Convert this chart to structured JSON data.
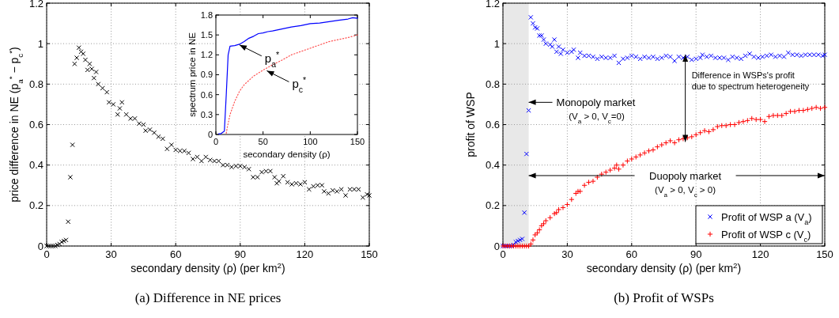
{
  "chart_data": [
    {
      "type": "scatter",
      "xlabel": "secondary density (ρ) (per km$^{2}$)",
      "ylabel": "price difference in NE (p$_{a}$$^{*}$ − p$_{c}$$^{*}$)",
      "xlim": [
        0,
        150
      ],
      "ylim": [
        0,
        1.2
      ],
      "xticks": [
        0,
        30,
        60,
        90,
        120,
        150
      ],
      "yticks": [
        0,
        0.2,
        0.4,
        0.6,
        0.8,
        1,
        1.2
      ],
      "grid": true,
      "marker": "cross",
      "annotations": [
        "(a) Difference in NE prices"
      ],
      "series": [
        {
          "color": "#000000",
          "x": [
            0,
            1,
            2,
            3,
            4,
            5,
            6,
            7,
            8,
            9,
            10,
            11,
            12,
            13,
            14,
            15,
            16,
            17,
            18,
            19,
            20,
            21,
            22,
            23,
            24,
            26,
            28,
            29,
            31,
            33,
            34,
            35,
            37,
            39,
            41,
            43,
            45,
            46,
            48,
            50,
            52,
            54,
            56,
            58,
            60,
            62,
            64,
            66,
            68,
            70,
            72,
            74,
            76,
            78,
            80,
            82,
            84,
            86,
            88,
            90,
            92,
            94,
            96,
            98,
            100,
            102,
            104,
            106,
            107,
            108,
            110,
            112,
            114,
            116,
            118,
            120,
            122,
            124,
            126,
            128,
            129,
            131,
            133,
            135,
            137,
            139,
            141,
            143,
            145,
            147,
            149,
            150
          ],
          "values": [
            0,
            0,
            0,
            0,
            0,
            0.005,
            0.01,
            0.02,
            0.025,
            0.03,
            0.12,
            0.34,
            0.5,
            0.9,
            0.93,
            0.98,
            0.96,
            0.95,
            0.92,
            0.87,
            0.9,
            0.875,
            0.83,
            0.86,
            0.8,
            0.78,
            0.76,
            0.71,
            0.7,
            0.65,
            0.68,
            0.71,
            0.65,
            0.63,
            0.63,
            0.605,
            0.6,
            0.57,
            0.575,
            0.56,
            0.54,
            0.53,
            0.48,
            0.5,
            0.475,
            0.47,
            0.47,
            0.46,
            0.43,
            0.44,
            0.42,
            0.44,
            0.425,
            0.42,
            0.42,
            0.4,
            0.4,
            0.39,
            0.395,
            0.395,
            0.39,
            0.38,
            0.34,
            0.34,
            0.365,
            0.37,
            0.37,
            0.34,
            0.31,
            0.32,
            0.345,
            0.315,
            0.305,
            0.31,
            0.305,
            0.315,
            0.28,
            0.295,
            0.3,
            0.3,
            0.27,
            0.26,
            0.275,
            0.27,
            0.28,
            0.25,
            0.28,
            0.28,
            0.28,
            0.24,
            0.255,
            0.25
          ]
        }
      ]
    },
    {
      "type": "line",
      "xlabel": "secondary density (ρ)",
      "ylabel": "spectrum price in NE",
      "xlim": [
        0,
        150
      ],
      "ylim": [
        0,
        1.8
      ],
      "xticks": [
        0,
        50,
        100,
        150
      ],
      "yticks": [
        0,
        0.3,
        0.6,
        0.9,
        1.2,
        1.5,
        1.8
      ],
      "annotations": [
        {
          "text": "p$_{a}$$^{*}$",
          "x": 25,
          "y": 1.35
        },
        {
          "text": "p$_{c}$$^{*}$",
          "x": 54,
          "y": 0.96
        }
      ],
      "series": [
        {
          "color": "#0000ff",
          "line_style": "solid",
          "x": [
            3,
            5,
            9,
            11,
            13,
            15,
            20,
            25,
            30,
            35,
            40,
            45,
            50,
            55,
            60,
            70,
            80,
            90,
            100,
            110,
            120,
            130,
            140,
            145,
            150
          ],
          "values": [
            0.01,
            0.01,
            0.05,
            0.6,
            1.2,
            1.33,
            1.34,
            1.36,
            1.4,
            1.45,
            1.48,
            1.52,
            1.53,
            1.55,
            1.56,
            1.59,
            1.62,
            1.64,
            1.67,
            1.68,
            1.7,
            1.72,
            1.74,
            1.76,
            1.75
          ]
        },
        {
          "color": "#ff5050",
          "line_style": "dotted",
          "x": [
            11,
            12,
            15,
            20,
            25,
            30,
            40,
            50,
            60,
            70,
            80,
            90,
            100,
            110,
            120,
            130,
            140,
            150
          ],
          "values": [
            0.02,
            0.1,
            0.3,
            0.5,
            0.65,
            0.75,
            0.88,
            0.97,
            1.05,
            1.12,
            1.2,
            1.25,
            1.3,
            1.35,
            1.4,
            1.43,
            1.46,
            1.5
          ]
        }
      ]
    },
    {
      "type": "scatter",
      "xlabel": "secondary density (ρ) (per km$^{2}$)",
      "ylabel": "profit of WSP",
      "xlim": [
        0,
        150
      ],
      "ylim": [
        0,
        1.2
      ],
      "xticks": [
        0,
        30,
        60,
        90,
        120,
        150
      ],
      "yticks": [
        0,
        0.2,
        0.4,
        0.6,
        0.8,
        1,
        1.2
      ],
      "grid": true,
      "legend": "bottom right",
      "bands": [
        {
          "axis": "x",
          "from": 0,
          "to": 12,
          "color": "#e8e8e8"
        }
      ],
      "annotations": [
        {
          "text": "Monopoly market",
          "x": 12,
          "y": 0.71
        },
        "(V$_{a}$ > 0, V$_{c}$=0)",
        "Duopoly market",
        "(V$_{a}$ > 0, V$_{c}$ > 0)",
        {
          "text": "Difference in WSPs's profit due to spectrum heterogeneity",
          "x": 85,
          "y": 0.93
        },
        "(b) Profit of WSPs"
      ],
      "series": [
        {
          "name": "Profit of WSP a (V$_{a}$)",
          "color": "#0000ff",
          "marker": "cross",
          "x": [
            0,
            1,
            2,
            3,
            4,
            5,
            6,
            7,
            8,
            9,
            10,
            11,
            12,
            13,
            14,
            15,
            16,
            17,
            18,
            19,
            20,
            22,
            23,
            24,
            25,
            26,
            27,
            28,
            30,
            32,
            33,
            35,
            36,
            38,
            40,
            42,
            44,
            46,
            48,
            50,
            52,
            54,
            56,
            58,
            60,
            62,
            64,
            66,
            68,
            70,
            72,
            74,
            76,
            78,
            80,
            82,
            84,
            86,
            88,
            90,
            92,
            93,
            95,
            97,
            99,
            101,
            103,
            105,
            107,
            109,
            111,
            113,
            115,
            117,
            119,
            121,
            123,
            125,
            127,
            129,
            131,
            133,
            135,
            137,
            139,
            141,
            143,
            145,
            147,
            149,
            150
          ],
          "values": [
            0,
            0,
            0,
            0,
            0,
            0.005,
            0.02,
            0.025,
            0.03,
            0.035,
            0.165,
            0.455,
            0.67,
            1.13,
            1.1,
            1.08,
            1.075,
            1.04,
            1.04,
            1.02,
            1.0,
            0.995,
            0.985,
            1.02,
            0.96,
            0.985,
            0.95,
            0.97,
            0.955,
            0.96,
            0.97,
            0.93,
            0.955,
            0.94,
            0.94,
            0.935,
            0.925,
            0.935,
            0.93,
            0.93,
            0.94,
            0.905,
            0.925,
            0.93,
            0.94,
            0.935,
            0.925,
            0.935,
            0.93,
            0.935,
            0.925,
            0.93,
            0.94,
            0.935,
            0.915,
            0.935,
            0.93,
            0.935,
            0.92,
            0.925,
            0.93,
            0.945,
            0.935,
            0.94,
            0.93,
            0.93,
            0.93,
            0.92,
            0.935,
            0.93,
            0.925,
            0.94,
            0.95,
            0.935,
            0.93,
            0.935,
            0.94,
            0.945,
            0.935,
            0.94,
            0.935,
            0.955,
            0.945,
            0.945,
            0.94,
            0.945,
            0.945,
            0.945,
            0.945,
            0.94,
            0.945
          ]
        },
        {
          "name": "Profit of WSP c (V$_{c}$)",
          "color": "#ff0000",
          "marker": "plus",
          "x": [
            0,
            1,
            2,
            3,
            4,
            5,
            6,
            7,
            8,
            9,
            10,
            11,
            12,
            13,
            14,
            15,
            16,
            17,
            18,
            19,
            20,
            22,
            24,
            25,
            26,
            28,
            30,
            32,
            34,
            35,
            36,
            38,
            40,
            42,
            44,
            46,
            48,
            50,
            52,
            53,
            54,
            56,
            58,
            60,
            62,
            64,
            66,
            68,
            70,
            72,
            74,
            76,
            78,
            80,
            82,
            84,
            86,
            88,
            90,
            92,
            94,
            96,
            98,
            100,
            102,
            104,
            106,
            108,
            110,
            112,
            114,
            116,
            118,
            120,
            122,
            124,
            126,
            128,
            130,
            132,
            134,
            136,
            138,
            140,
            142,
            144,
            146,
            148,
            150
          ],
          "values": [
            0,
            0,
            0,
            0,
            0,
            0,
            0,
            0,
            0,
            0,
            0,
            0,
            0,
            0.01,
            0.03,
            0.055,
            0.065,
            0.08,
            0.1,
            0.11,
            0.125,
            0.14,
            0.16,
            0.165,
            0.18,
            0.19,
            0.205,
            0.23,
            0.26,
            0.27,
            0.27,
            0.3,
            0.315,
            0.32,
            0.34,
            0.355,
            0.365,
            0.375,
            0.385,
            0.4,
            0.38,
            0.4,
            0.42,
            0.43,
            0.44,
            0.45,
            0.46,
            0.47,
            0.475,
            0.49,
            0.5,
            0.51,
            0.52,
            0.51,
            0.525,
            0.53,
            0.535,
            0.54,
            0.55,
            0.56,
            0.57,
            0.565,
            0.575,
            0.59,
            0.595,
            0.595,
            0.6,
            0.6,
            0.61,
            0.615,
            0.62,
            0.63,
            0.625,
            0.625,
            0.615,
            0.64,
            0.645,
            0.645,
            0.645,
            0.655,
            0.665,
            0.665,
            0.67,
            0.67,
            0.675,
            0.68,
            0.685,
            0.68,
            0.685
          ]
        }
      ]
    }
  ]
}
